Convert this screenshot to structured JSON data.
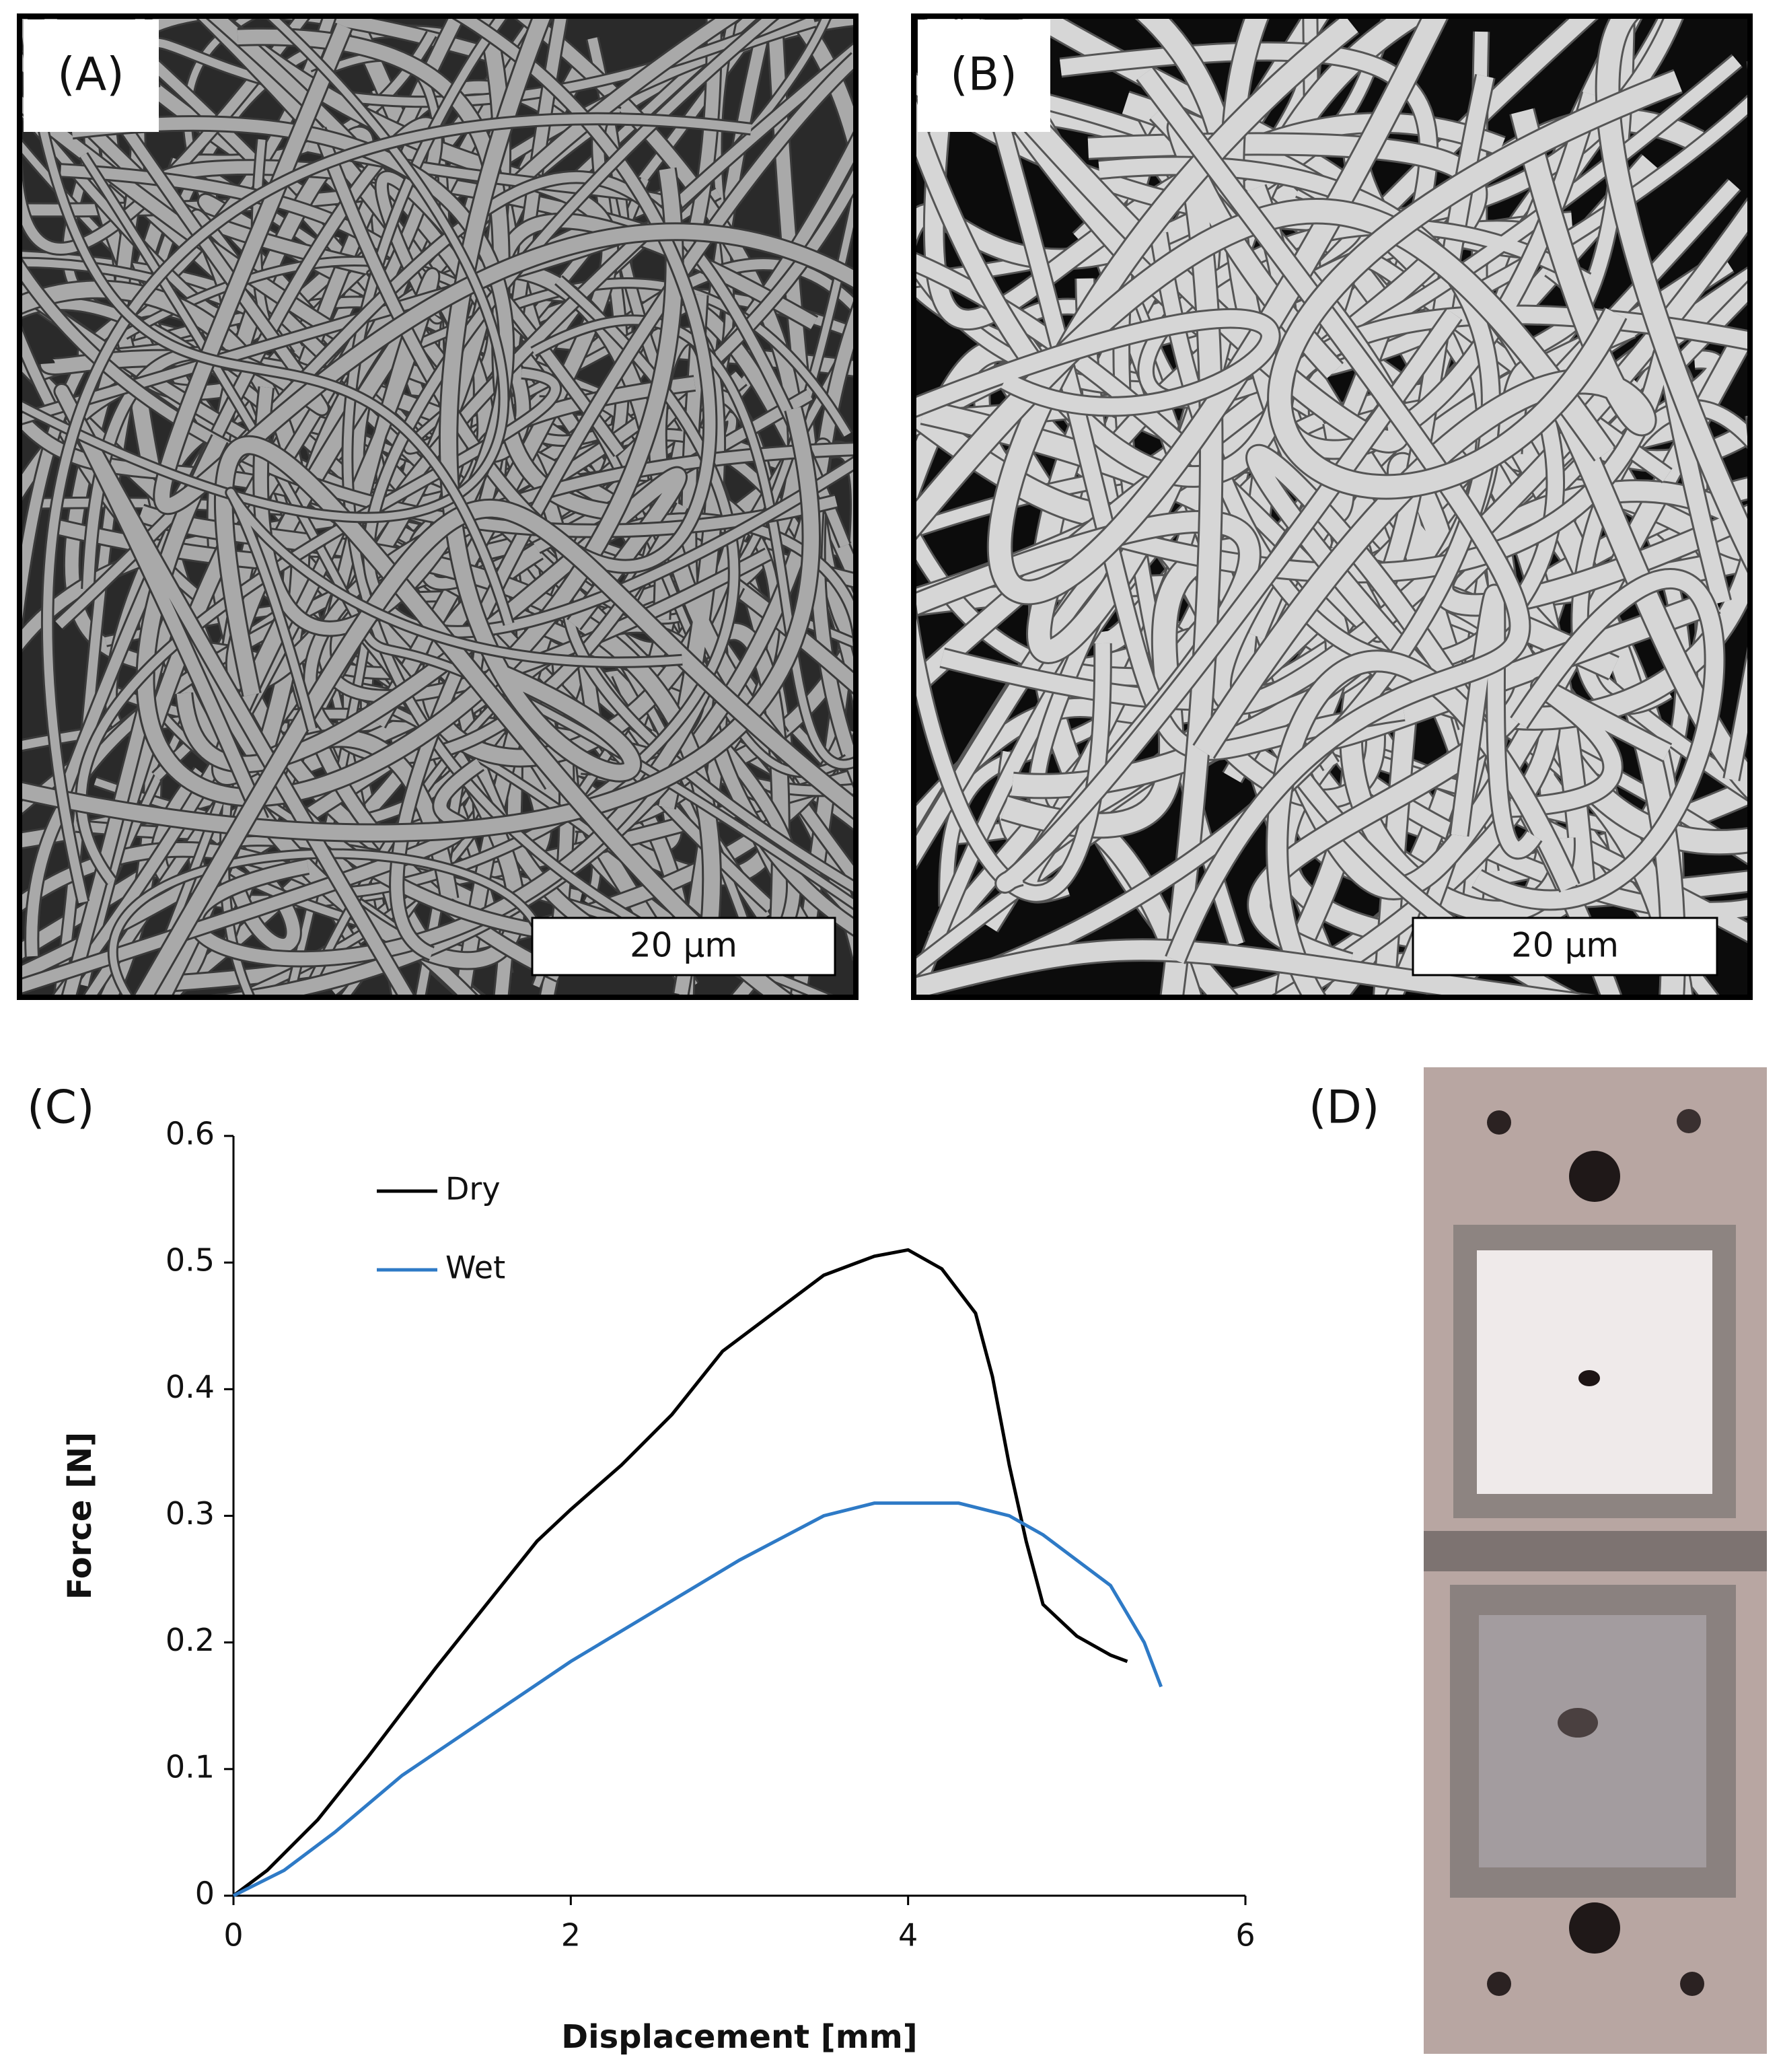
{
  "panels": [
    {
      "label": "(A)",
      "scale_bar": "20 µm"
    },
    {
      "label": "(B)",
      "scale_bar": "20 µm"
    },
    {
      "label": "(C)"
    },
    {
      "label": "(D)"
    }
  ],
  "chart_data": {
    "type": "line",
    "xlabel": "Displacement [mm]",
    "ylabel": "Force [N]",
    "xlim": [
      0,
      6
    ],
    "xticks": [
      0,
      2,
      4,
      6
    ],
    "ylim": [
      0,
      0.6
    ],
    "yticks": [
      0,
      0.1,
      0.2,
      0.3,
      0.4,
      0.5,
      0.6
    ],
    "legend": "upper-left",
    "series": [
      {
        "name": "Dry",
        "color": "#000000",
        "x": [
          0,
          0.2,
          0.5,
          0.8,
          1.0,
          1.2,
          1.5,
          1.8,
          2.0,
          2.3,
          2.6,
          2.9,
          3.2,
          3.5,
          3.8,
          4.0,
          4.2,
          4.4,
          4.5,
          4.6,
          4.7,
          4.8,
          5.0,
          5.2,
          5.3
        ],
        "values": [
          0,
          0.02,
          0.06,
          0.11,
          0.145,
          0.18,
          0.23,
          0.28,
          0.305,
          0.34,
          0.38,
          0.43,
          0.46,
          0.49,
          0.505,
          0.51,
          0.495,
          0.46,
          0.41,
          0.34,
          0.28,
          0.23,
          0.205,
          0.19,
          0.185
        ]
      },
      {
        "name": "Wet",
        "color": "#2e7ac6",
        "x": [
          0,
          0.3,
          0.6,
          1.0,
          1.5,
          2.0,
          2.5,
          3.0,
          3.5,
          3.8,
          4.0,
          4.3,
          4.6,
          4.8,
          5.0,
          5.2,
          5.4,
          5.5
        ],
        "values": [
          0,
          0.02,
          0.05,
          0.095,
          0.14,
          0.185,
          0.225,
          0.265,
          0.3,
          0.31,
          0.31,
          0.31,
          0.3,
          0.285,
          0.265,
          0.245,
          0.2,
          0.165
        ]
      }
    ]
  }
}
